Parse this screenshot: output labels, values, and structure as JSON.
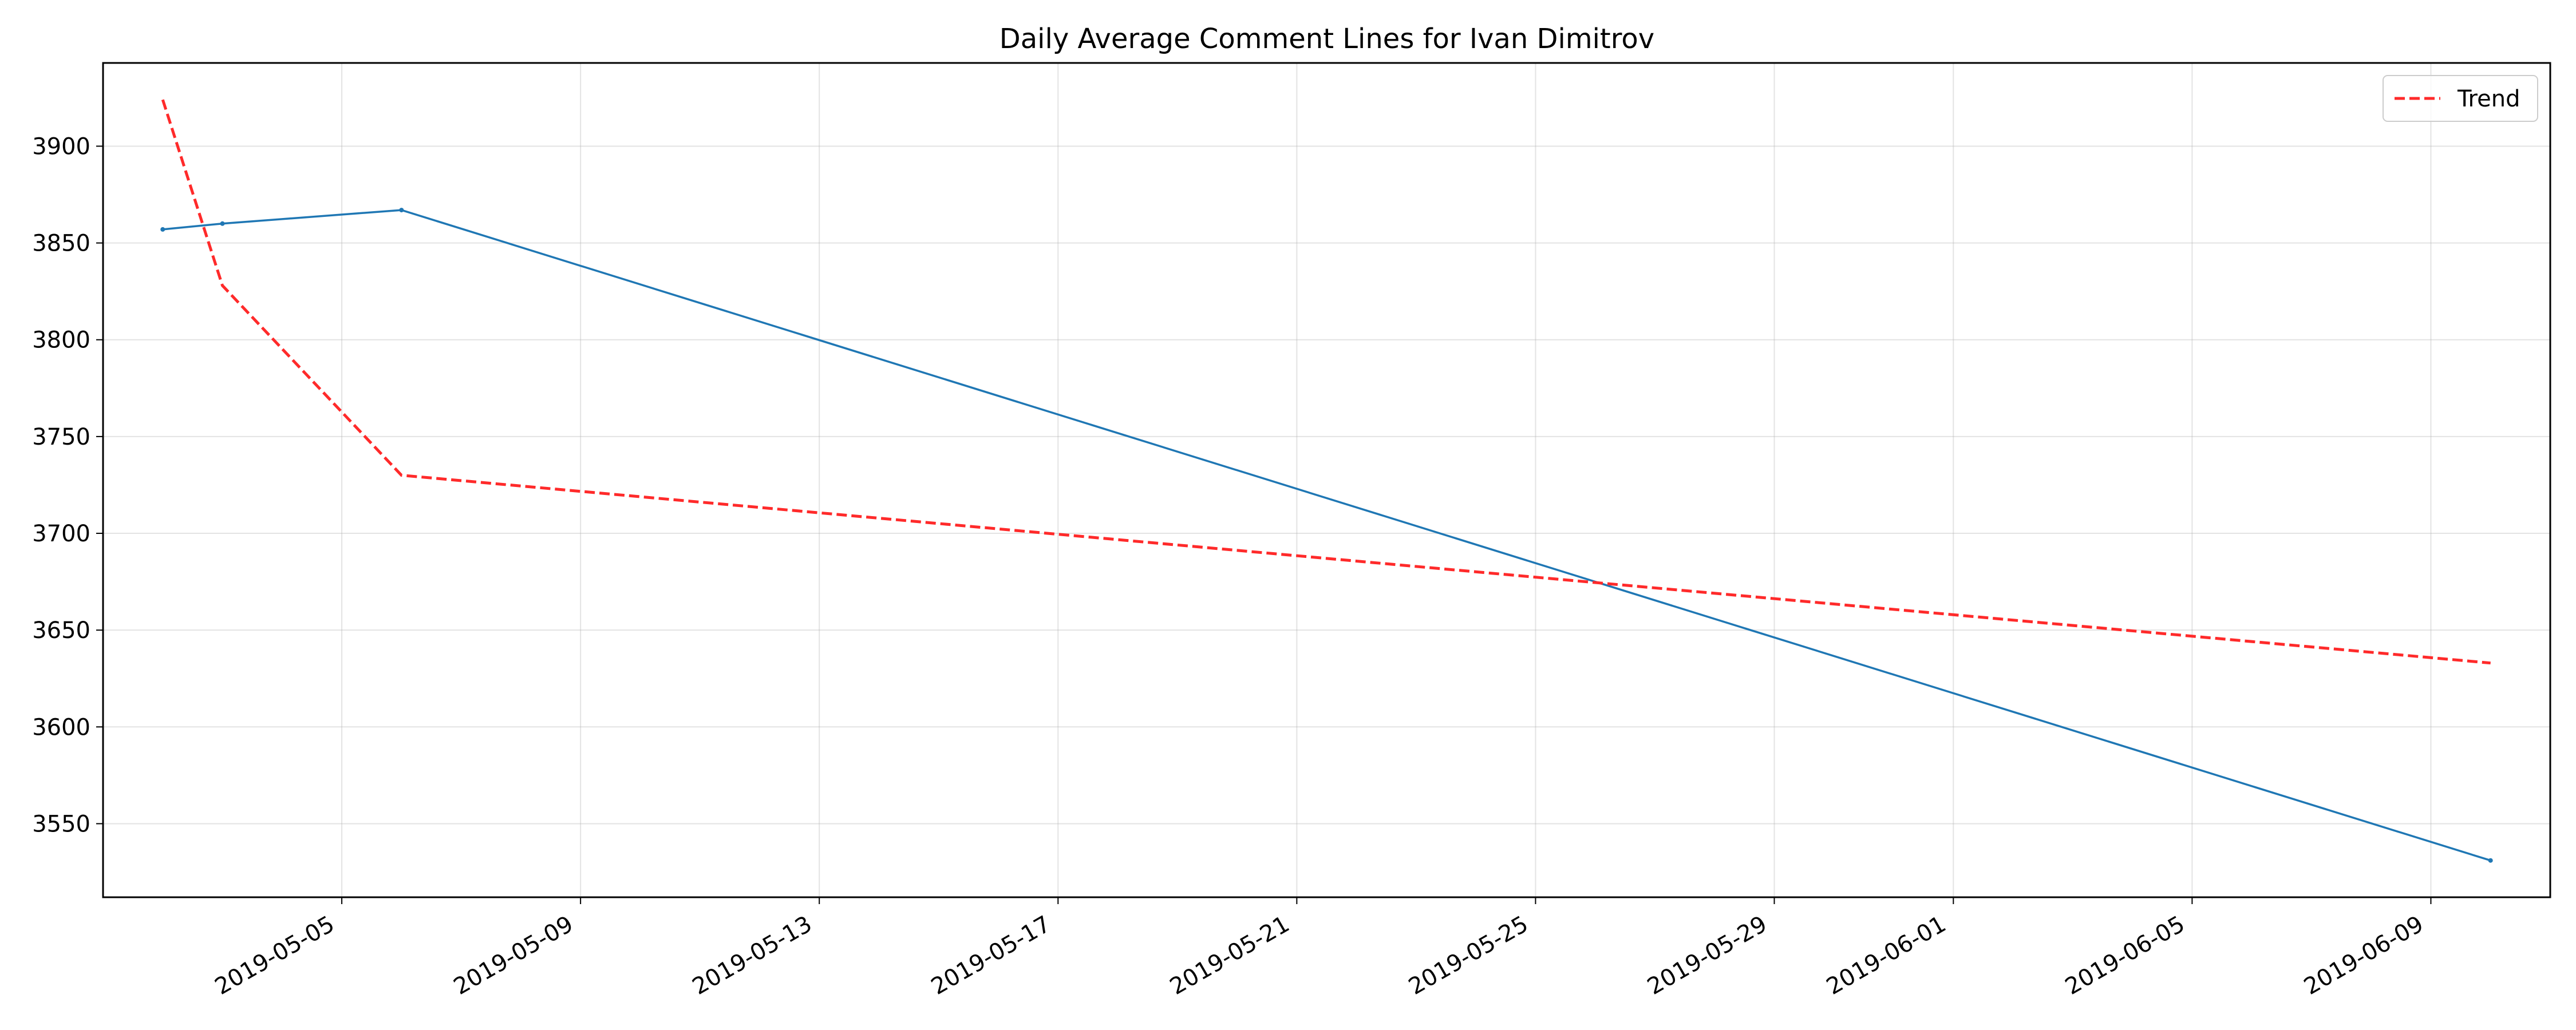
{
  "chart_data": {
    "type": "line",
    "title": "Daily Average Comment Lines for Ivan Dimitrov",
    "xlabel": "",
    "ylabel": "",
    "x_type": "date",
    "xlim": [
      "2019-05-01",
      "2019-06-11"
    ],
    "ylim": [
      3512,
      3943
    ],
    "grid": true,
    "legend_position": "upper right",
    "x_ticks": [
      "2019-05-05",
      "2019-05-09",
      "2019-05-13",
      "2019-05-17",
      "2019-05-21",
      "2019-05-25",
      "2019-05-29",
      "2019-06-01",
      "2019-06-05",
      "2019-06-09"
    ],
    "y_ticks": [
      3550,
      3600,
      3650,
      3700,
      3750,
      3800,
      3850,
      3900
    ],
    "series": [
      {
        "name": "",
        "color": "#1f77b4",
        "style": "solid",
        "marker": "point",
        "x": [
          "2019-05-02",
          "2019-05-03",
          "2019-05-06",
          "2019-06-10"
        ],
        "y": [
          3857,
          3860,
          3867,
          3531
        ]
      },
      {
        "name": "Trend",
        "color": "#ff2a2a",
        "style": "dashed",
        "x": [
          "2019-05-02",
          "2019-05-03",
          "2019-05-06",
          "2019-06-10"
        ],
        "y": [
          3924,
          3828,
          3730,
          3633
        ]
      }
    ]
  }
}
